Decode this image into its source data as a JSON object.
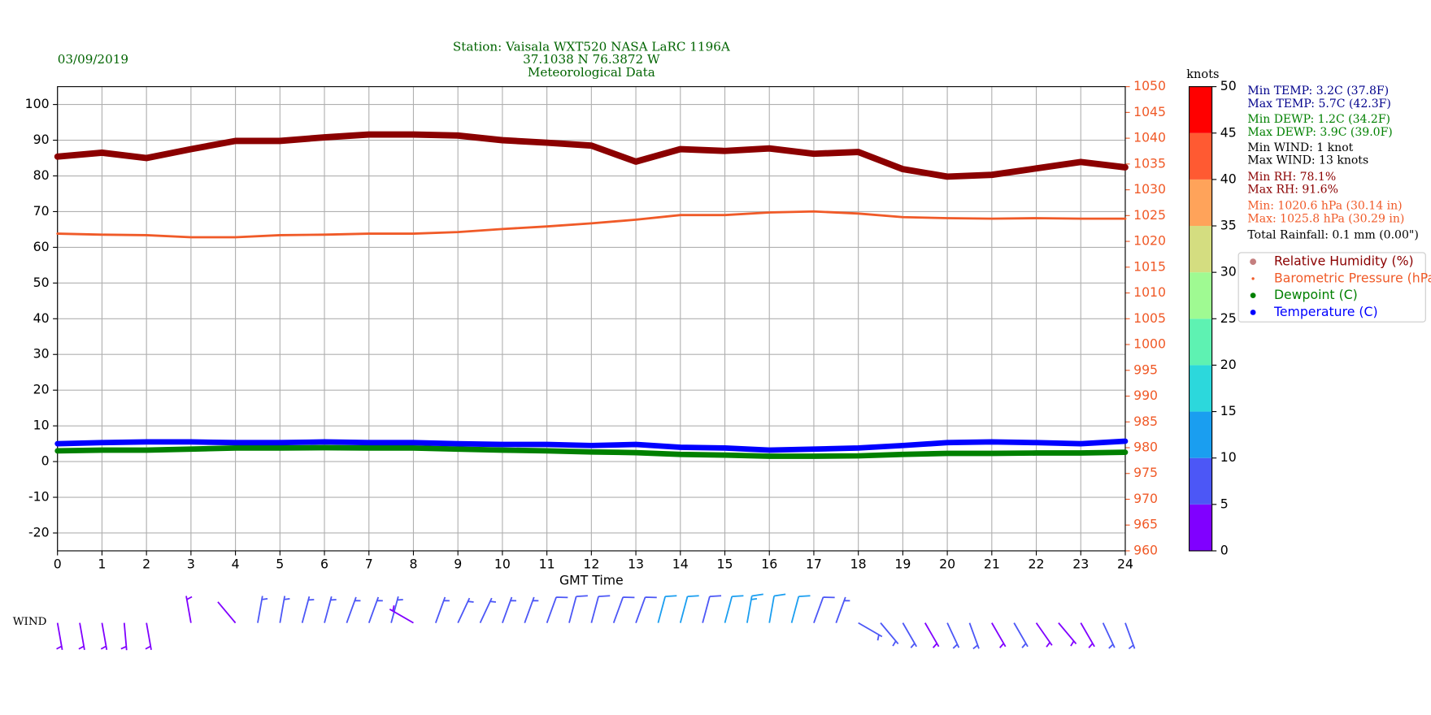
{
  "chart_data": {
    "type": "line",
    "title": "Station:  Vaisala WXT520  NASA LaRC 1196A",
    "subtitle": [
      "37.1038 N 76.3872 W",
      "Meteorological Data"
    ],
    "title_color": "#006400",
    "date": "03/09/2019",
    "x_label": "GMT Time",
    "x": [
      0,
      1,
      2,
      3,
      4,
      5,
      6,
      7,
      8,
      9,
      10,
      11,
      12,
      13,
      14,
      15,
      16,
      17,
      18,
      19,
      20,
      21,
      22,
      23,
      24
    ],
    "xlim": [
      0,
      24
    ],
    "xticks": [
      0,
      1,
      2,
      3,
      4,
      5,
      6,
      7,
      8,
      9,
      10,
      11,
      12,
      13,
      14,
      15,
      16,
      17,
      18,
      19,
      20,
      21,
      22,
      23,
      24
    ],
    "ylim": [
      -25,
      105
    ],
    "yticks": [
      -20,
      -10,
      0,
      10,
      20,
      30,
      40,
      50,
      60,
      70,
      80,
      90,
      100
    ],
    "y2lim": [
      960,
      1050
    ],
    "y2ticks": [
      960,
      965,
      970,
      975,
      980,
      985,
      990,
      995,
      1000,
      1005,
      1010,
      1015,
      1020,
      1025,
      1030,
      1035,
      1040,
      1045,
      1050
    ],
    "y2_color": "#f05a28",
    "grid": true,
    "legend": "right",
    "series": [
      {
        "name": "Relative Humidity (%)",
        "color": "#8b0000",
        "linewidth": 7,
        "marker_size": 3.5,
        "marker_opacity": 0.5,
        "values": [
          85.4,
          86.5,
          85,
          87.5,
          89.8,
          89.8,
          90.8,
          91.6,
          91.6,
          91.3,
          90,
          89.3,
          88.5,
          84,
          87.5,
          87,
          87.7,
          86.2,
          86.7,
          81.9,
          79.8,
          80.3,
          82.1,
          83.9,
          82.4
        ]
      },
      {
        "name": "Barometric Pressure (hPa)",
        "color": "#f05a28",
        "axis": "y2",
        "linewidth": 2.5,
        "marker_size": 1.5,
        "marker_opacity": 1,
        "values": [
          1021.5,
          1021.3,
          1021.2,
          1020.8,
          1020.8,
          1021.2,
          1021.3,
          1021.5,
          1021.5,
          1021.8,
          1022.4,
          1022.9,
          1023.5,
          1024.2,
          1025.1,
          1025.1,
          1025.6,
          1025.8,
          1025.4,
          1024.7,
          1024.5,
          1024.4,
          1024.5,
          1024.4,
          1024.4
        ]
      },
      {
        "name": "Dewpoint (C)",
        "color": "#008000",
        "linewidth": 6,
        "marker_size": 3,
        "marker_opacity": 1,
        "values": [
          3,
          3.2,
          3.2,
          3.5,
          3.8,
          3.8,
          3.9,
          3.8,
          3.8,
          3.5,
          3.2,
          3,
          2.7,
          2.5,
          2,
          1.8,
          1.5,
          1.5,
          1.6,
          2,
          2.3,
          2.3,
          2.4,
          2.4,
          2.6
        ]
      },
      {
        "name": "Temperature (C)",
        "color": "#0000ff",
        "linewidth": 6,
        "marker_size": 3,
        "marker_opacity": 1,
        "values": [
          5,
          5.3,
          5.5,
          5.5,
          5.3,
          5.3,
          5.5,
          5.3,
          5.3,
          5,
          4.8,
          4.8,
          4.5,
          4.8,
          4,
          3.8,
          3.2,
          3.5,
          3.8,
          4.5,
          5.3,
          5.5,
          5.3,
          5,
          5.7
        ]
      }
    ],
    "stats": [
      {
        "text": "Min TEMP: 3.2C (37.8F)",
        "color": "#00008b"
      },
      {
        "text": "Max TEMP: 5.7C (42.3F)",
        "color": "#00008b"
      },
      {
        "text": "Min DEWP: 1.2C (34.2F)",
        "color": "#008000"
      },
      {
        "text": "Max DEWP: 3.9C (39.0F)",
        "color": "#008000"
      },
      {
        "text": "Min WIND: 1 knot",
        "color": "#000000"
      },
      {
        "text": "Max WIND: 13 knots",
        "color": "#000000"
      },
      {
        "text": "Min RH: 78.1%",
        "color": "#8b0000"
      },
      {
        "text": "Max RH: 91.6%",
        "color": "#8b0000"
      },
      {
        "text": "Min: 1020.6 hPa (30.14 in)",
        "color": "#f05a28"
      },
      {
        "text": "Max: 1025.8 hPa (30.29 in)",
        "color": "#f05a28"
      },
      {
        "text": "Total Rainfall: 0.1 mm (0.00\")",
        "color": "#000000"
      }
    ],
    "wind": {
      "label": "WIND",
      "x": [
        0,
        0.5,
        1,
        1.5,
        2,
        2.5,
        3,
        3.5,
        4,
        4.5,
        5,
        5.5,
        6,
        6.5,
        7,
        7.5,
        8,
        8.5,
        9,
        9.5,
        10,
        10.5,
        11,
        11.5,
        12,
        12.5,
        13,
        13.5,
        14,
        14.5,
        15,
        15.5,
        16,
        16.5,
        17,
        17.5,
        18,
        18.5,
        19,
        19.5,
        20,
        20.5,
        21,
        21.5,
        22,
        22.5,
        23,
        23.5,
        24
      ],
      "speed": [
        4,
        4,
        4,
        4,
        3,
        null,
        3,
        null,
        2,
        5,
        5,
        5,
        6,
        6,
        6,
        5,
        4,
        5,
        6,
        7,
        7,
        7,
        8,
        8,
        8,
        8,
        9,
        11,
        12,
        9,
        11,
        13,
        12,
        10,
        8,
        7,
        6,
        5,
        5,
        4,
        5,
        5,
        4,
        5,
        4,
        3,
        4,
        5,
        7
      ],
      "direction": [
        170,
        170,
        170,
        175,
        170,
        null,
        350,
        null,
        320,
        10,
        10,
        15,
        15,
        20,
        20,
        15,
        300,
        20,
        25,
        25,
        20,
        20,
        20,
        15,
        15,
        20,
        20,
        15,
        15,
        15,
        15,
        10,
        10,
        15,
        20,
        20,
        120,
        140,
        150,
        150,
        155,
        160,
        150,
        150,
        145,
        140,
        150,
        155,
        160
      ]
    },
    "colorbar": {
      "label": "knots",
      "lim": [
        0,
        50
      ],
      "ticks": [
        0,
        5,
        10,
        15,
        20,
        25,
        30,
        35,
        40,
        45,
        50
      ],
      "colors": [
        "#8000ff",
        "#4c57f6",
        "#1a9ef0",
        "#2cd8dc",
        "#5ef2b2",
        "#9ffa92",
        "#d4dd80",
        "#ffa35a",
        "#ff5a32",
        "#ff0000"
      ]
    }
  }
}
